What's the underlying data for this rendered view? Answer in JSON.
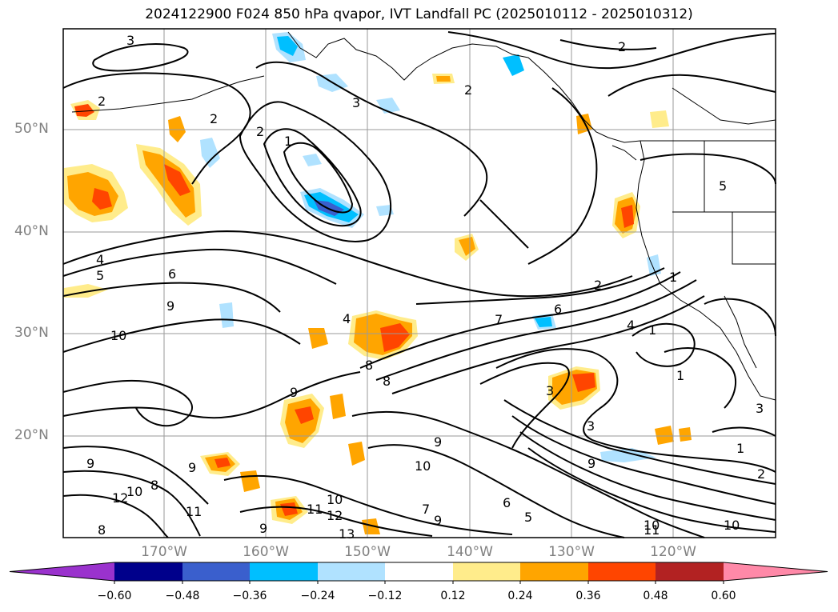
{
  "title": "2024122900 F024 850 hPa qvapor, IVT Landfall PC (2025010112 - 2025010312)",
  "lat_labels": [
    "50°N",
    "40°N",
    "30°N",
    "20°N"
  ],
  "lon_labels": [
    "170°W",
    "160°W",
    "150°W",
    "140°W",
    "130°W",
    "120°W"
  ],
  "colorbar": {
    "ticks": [
      "−0.60",
      "−0.48",
      "−0.36",
      "−0.24",
      "−0.12",
      "0.12",
      "0.24",
      "0.36",
      "0.48",
      "0.60"
    ],
    "colors": [
      "#9a32cd",
      "#00008b",
      "#3a5fcd",
      "#00bfff",
      "#b0e2ff",
      "#ffffff",
      "#ffec8b",
      "#ffa500",
      "#ff4500",
      "#b22222",
      "#ff89a8"
    ]
  },
  "contour_labels": [
    "3",
    "2",
    "2",
    "3",
    "2",
    "2",
    "1",
    "4",
    "5",
    "6",
    "9",
    "10",
    "4",
    "7",
    "6",
    "2",
    "8",
    "8",
    "9",
    "3",
    "3",
    "9",
    "9",
    "10",
    "6",
    "5",
    "7",
    "9",
    "10",
    "11",
    "12",
    "13",
    "10",
    "10",
    "11",
    "1",
    "2",
    "3",
    "4",
    "1",
    "1",
    "5",
    "2",
    "1",
    "8",
    "9",
    "10",
    "11",
    "12",
    "9",
    "8",
    "9"
  ]
}
